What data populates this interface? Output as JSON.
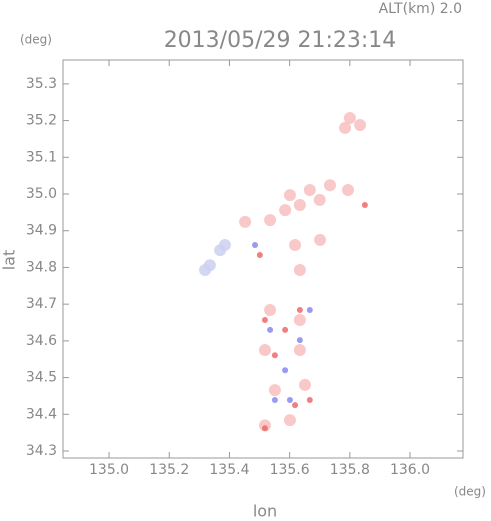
{
  "chart_data": {
    "type": "scatter",
    "title": "2013/05/29 21:23:14",
    "subtitle": "ALT(km) 2.0",
    "y_unit": "(deg)",
    "x_unit": "(deg)",
    "xlabel": "lon",
    "ylabel": "lat",
    "xlim": [
      134.847,
      136.176
    ],
    "ylim": [
      34.281,
      35.365
    ],
    "xticks": [
      {
        "value": 135,
        "label": "135.0"
      },
      135.2,
      135.4,
      135.6,
      135.8,
      {
        "value": 136,
        "label": "136.0"
      }
    ],
    "yticks": [
      34.3,
      34.4,
      34.5,
      34.6,
      34.7,
      34.8,
      34.9,
      {
        "value": 35,
        "label": "35.0"
      },
      35.1,
      35.2,
      35.3
    ],
    "series": [
      {
        "color": "#f8c0c0",
        "x": [
          135.8,
          135.834,
          135.784,
          135.601,
          135.634,
          135.667,
          135.7,
          135.585,
          135.734,
          135.794,
          135.535,
          135.452,
          135.701,
          135.634,
          135.618,
          135.535,
          135.634,
          135.518,
          135.634,
          135.551,
          135.651,
          135.518,
          135.601
        ],
        "y": [
          35.207,
          35.188,
          35.18,
          34.997,
          34.97,
          35.011,
          34.984,
          34.956,
          35.024,
          35.011,
          34.929,
          34.924,
          34.875,
          34.793,
          34.861,
          34.684,
          34.657,
          34.575,
          34.575,
          34.466,
          34.48,
          34.37,
          34.384
        ]
      },
      {
        "color": "#ccd0f0",
        "x": [
          135.335,
          135.369,
          135.385,
          135.319
        ],
        "y": [
          34.806,
          34.847,
          34.861,
          34.793
        ]
      },
      {
        "color": "#f06868",
        "x": [
          135.518,
          135.585,
          135.634,
          135.551,
          135.667,
          135.518,
          135.618,
          135.501,
          135.85
        ],
        "y": [
          34.657,
          34.63,
          34.684,
          34.561,
          34.439,
          34.362,
          34.425,
          34.834,
          34.97
        ]
      },
      {
        "color": "#8888f0",
        "x": [
          135.535,
          135.634,
          135.585,
          135.551,
          135.485,
          135.667,
          135.601
        ],
        "y": [
          34.63,
          34.602,
          34.52,
          34.439,
          34.861,
          34.684,
          34.439
        ]
      }
    ]
  }
}
